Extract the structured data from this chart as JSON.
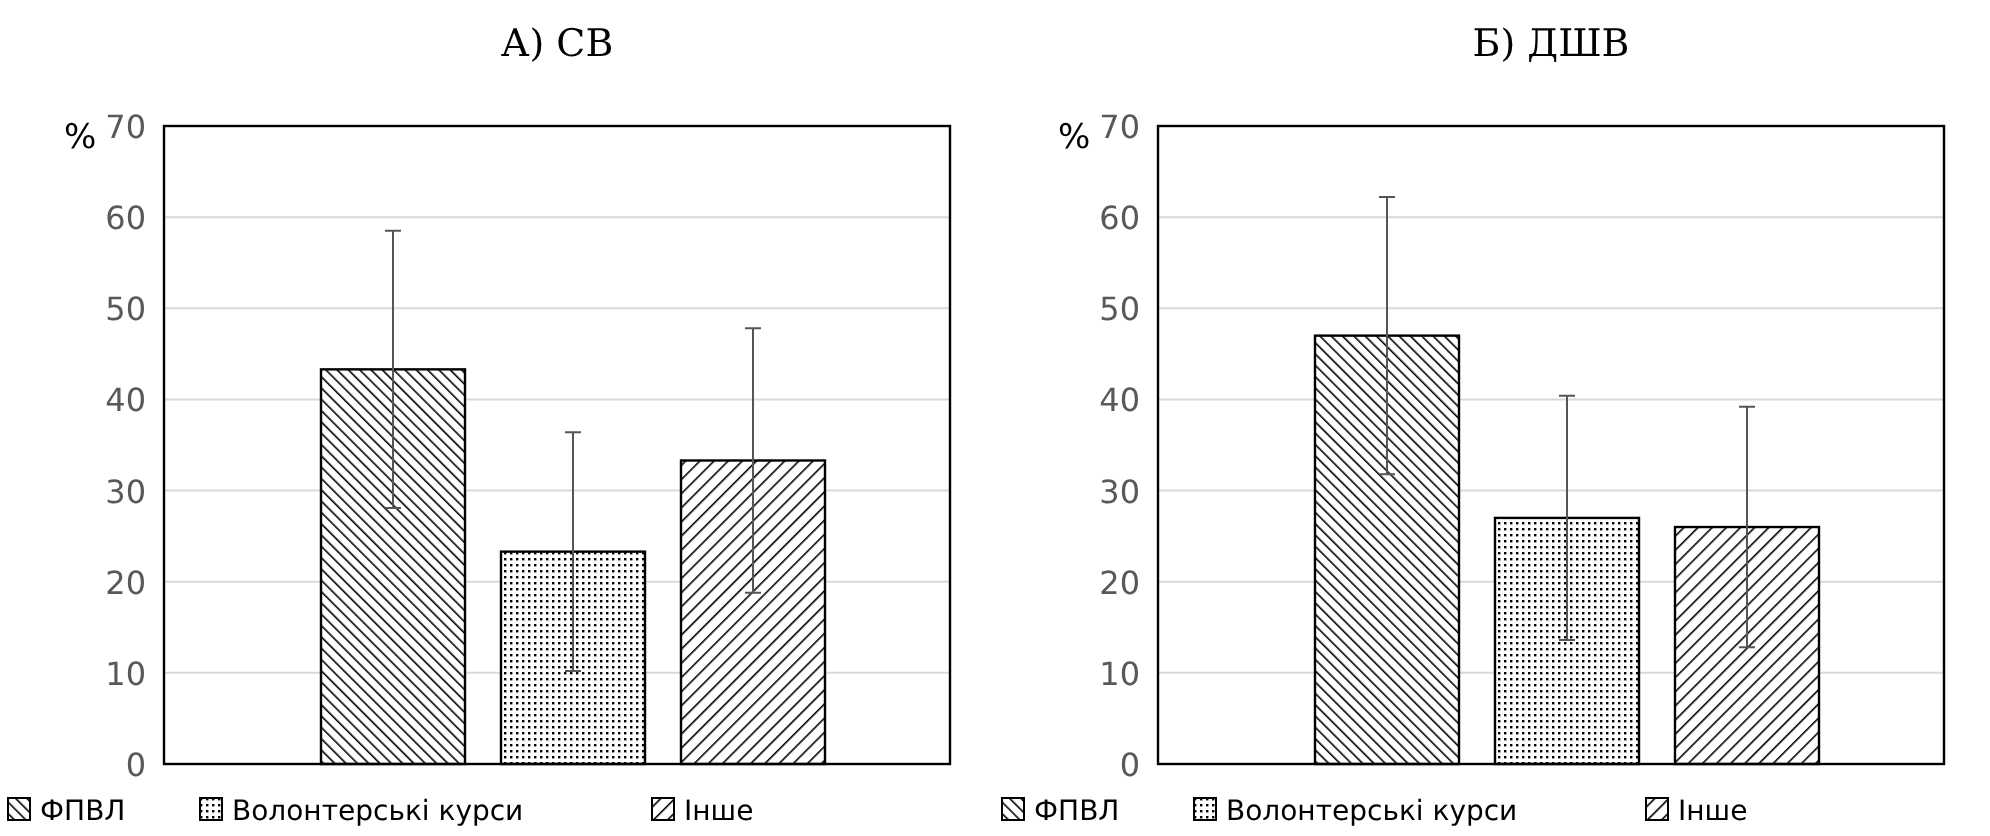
{
  "chart_data": [
    {
      "type": "bar",
      "title": "А) СВ",
      "ylabel": "%",
      "categories": [
        null
      ],
      "ylim": [
        0,
        70
      ],
      "yticks": [
        0,
        10,
        20,
        30,
        40,
        50,
        60,
        70
      ],
      "grid": "y",
      "legend": "bottom",
      "series": [
        {
          "name": "ФПВЛ",
          "color": "#000000",
          "values": [
            43.3
          ],
          "errors": [
            15.2
          ]
        },
        {
          "name": "Волонтерські курси",
          "color": "#000000",
          "values": [
            23.3
          ],
          "errors": [
            13.1
          ]
        },
        {
          "name": "Інше",
          "color": "#000000",
          "values": [
            33.3
          ],
          "errors": [
            14.5
          ]
        }
      ]
    },
    {
      "type": "bar",
      "title": "Б) ДШВ",
      "ylabel": "%",
      "categories": [
        null
      ],
      "ylim": [
        0,
        70
      ],
      "yticks": [
        0,
        10,
        20,
        30,
        40,
        50,
        60,
        70
      ],
      "grid": "y",
      "legend": "bottom",
      "series": [
        {
          "name": "ФПВЛ",
          "color": "#000000",
          "values": [
            47
          ],
          "errors": [
            15.2
          ]
        },
        {
          "name": "Волонтерські курси",
          "color": "#000000",
          "values": [
            27
          ],
          "errors": [
            13.4
          ]
        },
        {
          "name": "Інше",
          "color": "#000000",
          "values": [
            26
          ],
          "errors": [
            13.2
          ]
        }
      ]
    }
  ]
}
